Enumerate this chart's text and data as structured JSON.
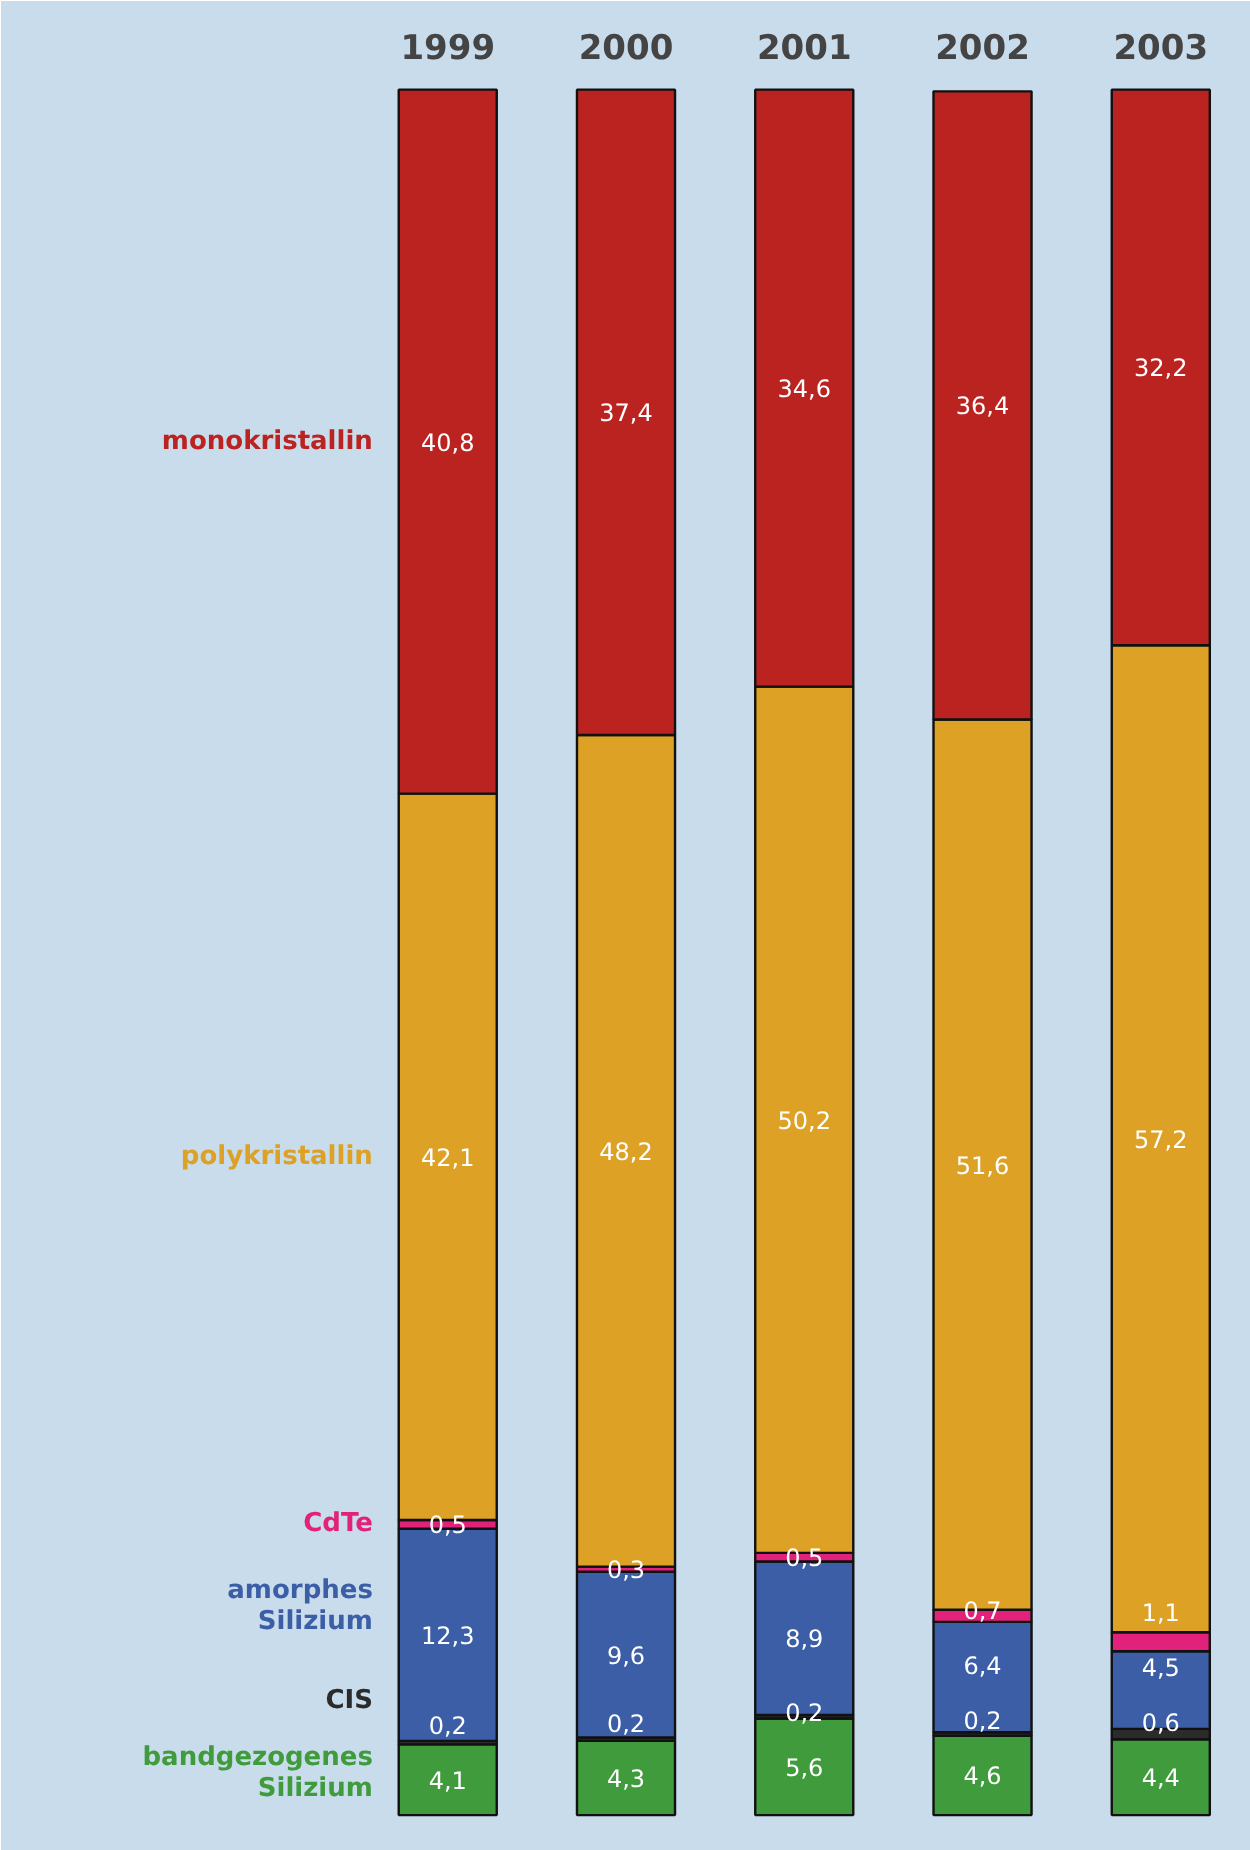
{
  "chart_data": {
    "type": "bar",
    "stacked": true,
    "grid": false,
    "categories": [
      "1999",
      "2000",
      "2001",
      "2002",
      "2003"
    ],
    "series": [
      {
        "name": "bandgezogenes\nSilizium",
        "color": "#3f9b3c",
        "values": [
          4.1,
          4.3,
          5.6,
          4.6,
          4.4
        ],
        "value_labels": [
          "4,1",
          "4,3",
          "5,6",
          "4,6",
          "4,4"
        ]
      },
      {
        "name": "CIS",
        "color": "#2b2b2b",
        "values": [
          0.2,
          0.2,
          0.2,
          0.2,
          0.6
        ],
        "value_labels": [
          "0,2",
          "0,2",
          "0,2",
          "0,2",
          "0,6"
        ]
      },
      {
        "name": "amorphes\nSilizium",
        "color": "#3b5ea6",
        "values": [
          12.3,
          9.6,
          8.9,
          6.4,
          4.5
        ],
        "value_labels": [
          "12,3",
          "9,6",
          "8,9",
          "6,4",
          "4,5"
        ]
      },
      {
        "name": "CdTe",
        "color": "#e2217a",
        "values": [
          0.5,
          0.3,
          0.5,
          0.7,
          1.1
        ],
        "value_labels": [
          "0,5",
          "0,3",
          "0,5",
          "0,7",
          "1,1"
        ]
      },
      {
        "name": "polykristallin",
        "color": "#dca125",
        "values": [
          42.1,
          48.2,
          50.2,
          51.6,
          57.2
        ],
        "value_labels": [
          "42,1",
          "48,2",
          "50,2",
          "51,6",
          "57,2"
        ]
      },
      {
        "name": "monokristallin",
        "color": "#bb2320",
        "values": [
          40.8,
          37.4,
          34.6,
          36.4,
          32.2
        ],
        "value_labels": [
          "40,8",
          "37,4",
          "34,6",
          "36,4",
          "32,2"
        ]
      }
    ]
  }
}
